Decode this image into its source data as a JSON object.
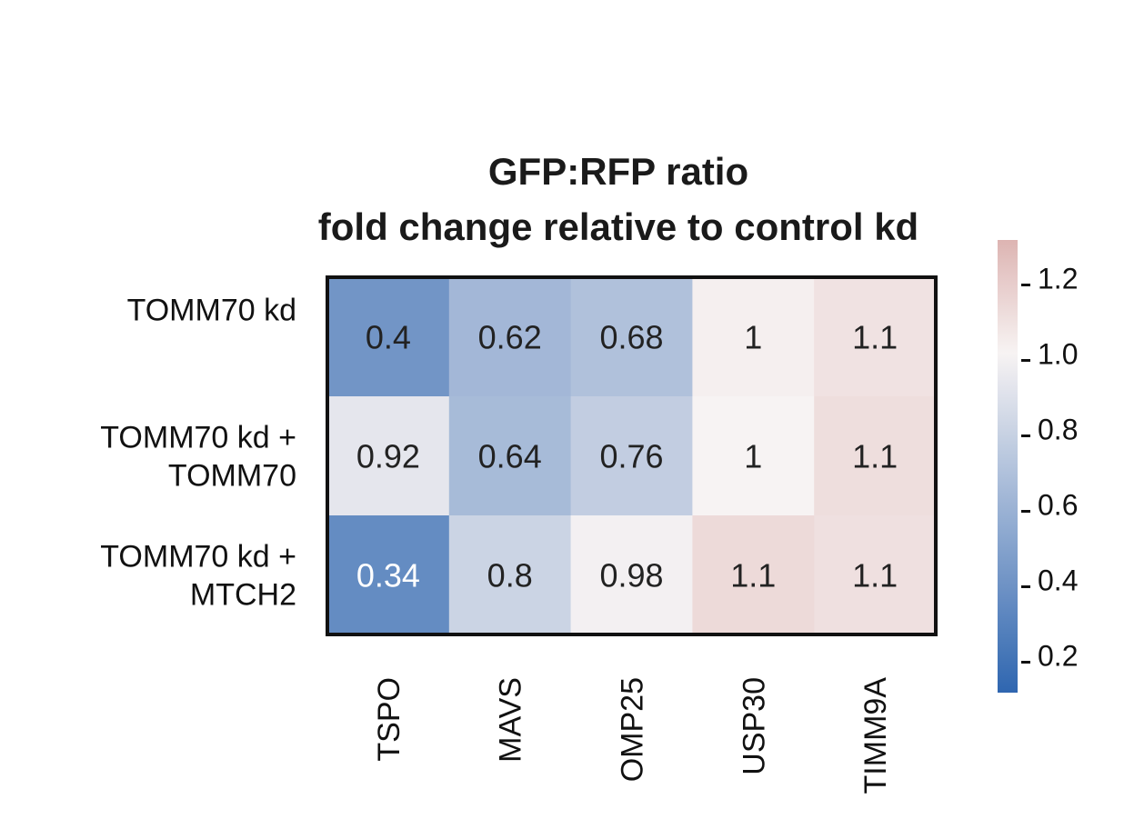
{
  "chart_data": {
    "type": "heatmap",
    "title": [
      "GFP:RFP ratio",
      "fold change relative to control kd"
    ],
    "rows": [
      [
        "TOMM70 kd"
      ],
      [
        "TOMM70 kd +",
        "TOMM70"
      ],
      [
        "TOMM70 kd +",
        "MTCH2"
      ]
    ],
    "columns": [
      "TSPO",
      "MAVS",
      "OMP25",
      "USP30",
      "TIMM9A"
    ],
    "values": [
      [
        0.4,
        0.62,
        0.68,
        1.02,
        1.08
      ],
      [
        0.92,
        0.64,
        0.76,
        1.0,
        1.1
      ],
      [
        0.34,
        0.8,
        0.98,
        1.12,
        1.09
      ]
    ],
    "annotations": [
      [
        "0.4",
        "0.62",
        "0.68",
        "1",
        "1.1"
      ],
      [
        "0.92",
        "0.64",
        "0.76",
        "1",
        "1.1"
      ],
      [
        "0.34",
        "0.8",
        "0.98",
        "1.1",
        "1.1"
      ]
    ],
    "colorbar": {
      "range": [
        0.1,
        1.3
      ],
      "ticks": [
        0.2,
        0.4,
        0.6,
        0.8,
        1.0,
        1.2
      ],
      "tick_labels": [
        "0.2",
        "0.4",
        "0.6",
        "0.8",
        "1.0",
        "1.2"
      ],
      "colormap": "diverging blue-white-red",
      "colors": {
        "low": "#2f66b0",
        "mid": "#f7f3f3",
        "high": "#ddb4b2"
      }
    }
  }
}
